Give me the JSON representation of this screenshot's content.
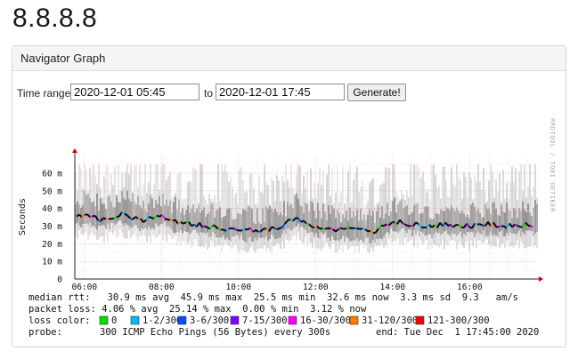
{
  "page": {
    "title": "8.8.8.8"
  },
  "panel": {
    "title": "Navigator Graph"
  },
  "form": {
    "time_range_label": "Time range:",
    "start_value": "2020-12-01 05:45",
    "to_label": "to",
    "end_value": "2020-12-01 17:45",
    "generate_label": "Generate!"
  },
  "graph": {
    "watermark": "RRDTOOL / TOBI OETIKER",
    "ylabel": "Seconds",
    "ytick_labels": [
      "60 m",
      "50 m",
      "40 m",
      "30 m",
      "20 m",
      "10 m",
      "0"
    ],
    "xtick_labels": [
      "06:00",
      "08:00",
      "10:00",
      "12:00",
      "14:00",
      "16:00"
    ],
    "stats": {
      "rtt_line": "median rtt:   30.9 ms avg  45.9 ms max  25.5 ms min  32.6 ms now  3.3 ms sd  9.3   am/s",
      "loss_line": "packet loss: 4.06 % avg  25.14 % max  0.00 % min  3.12 % now",
      "loss_color_label": "loss color:",
      "legend": [
        {
          "label": "0",
          "color": "#00e000"
        },
        {
          "label": "1-2/300",
          "color": "#00bbff"
        },
        {
          "label": "3-6/300",
          "color": "#0050ff"
        },
        {
          "label": "7-15/300",
          "color": "#7e00ff"
        },
        {
          "label": "16-30/300",
          "color": "#ff00ff"
        },
        {
          "label": "31-120/300",
          "color": "#ff7b00"
        },
        {
          "label": "121-300/300",
          "color": "#ff0000"
        }
      ],
      "probe_label": "probe:",
      "probe_text": "300 ICMP Echo Pings (56 Bytes) every 300s",
      "end_text": "end: Tue Dec  1 17:45:00 2020"
    }
  },
  "chart_data": {
    "type": "line",
    "title": "",
    "xlabel": "",
    "ylabel": "Seconds",
    "x_range": [
      "05:45",
      "17:45"
    ],
    "ylim": [
      0,
      0.065
    ],
    "grid": true,
    "series": [
      {
        "name": "median rtt",
        "x": [
          "06:00",
          "06:30",
          "07:00",
          "07:30",
          "08:00",
          "08:30",
          "09:00",
          "09:30",
          "10:00",
          "10:30",
          "11:00",
          "11:30",
          "12:00",
          "12:30",
          "13:00",
          "13:30",
          "14:00",
          "14:30",
          "15:00",
          "15:30",
          "16:00",
          "16:30",
          "17:00",
          "17:30"
        ],
        "values": [
          0.036,
          0.034,
          0.037,
          0.033,
          0.036,
          0.031,
          0.031,
          0.029,
          0.028,
          0.027,
          0.029,
          0.035,
          0.03,
          0.028,
          0.028,
          0.027,
          0.033,
          0.031,
          0.03,
          0.031,
          0.03,
          0.031,
          0.03,
          0.031
        ]
      }
    ]
  }
}
